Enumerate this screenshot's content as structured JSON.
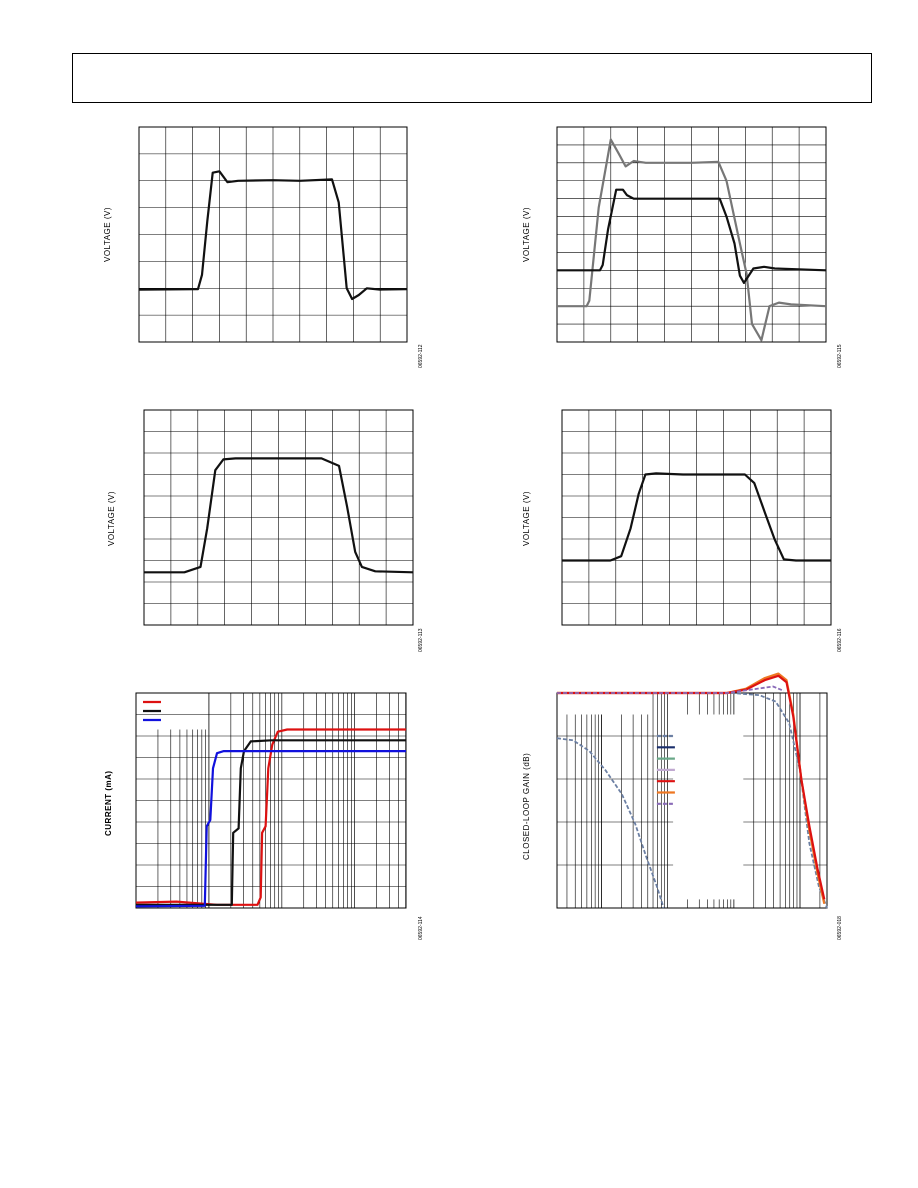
{
  "charts": [
    {
      "id": "c1",
      "ylabel": "VOLTAGE (V)",
      "fig_id": "06592-112"
    },
    {
      "id": "c2",
      "ylabel": "VOLTAGE (V)",
      "fig_id": "06592-115"
    },
    {
      "id": "c3",
      "ylabel": "VOLTAGE (V)",
      "fig_id": "06592-113"
    },
    {
      "id": "c4",
      "ylabel": "VOLTAGE (V)",
      "fig_id": "06592-116"
    },
    {
      "id": "c5",
      "ylabel": "CURRENT (mA)",
      "fig_id": "06592-114"
    },
    {
      "id": "c6",
      "ylabel": "CLOSED-LOOP GAIN (dB)",
      "fig_id": "06592-018"
    }
  ],
  "chart_data": [
    {
      "type": "line",
      "grid": true,
      "grid_divisions": [
        10,
        8
      ],
      "series": [
        {
          "color": "#111111",
          "points": [
            [
              0,
              1.95
            ],
            [
              2.2,
              1.97
            ],
            [
              2.35,
              2.5
            ],
            [
              2.55,
              4.5
            ],
            [
              2.75,
              6.3
            ],
            [
              3.0,
              6.35
            ],
            [
              3.3,
              5.95
            ],
            [
              3.7,
              6.0
            ],
            [
              5,
              6.02
            ],
            [
              6,
              6.0
            ],
            [
              7.2,
              6.05
            ],
            [
              7.45,
              5.2
            ],
            [
              7.75,
              2.0
            ],
            [
              7.95,
              1.6
            ],
            [
              8.2,
              1.75
            ],
            [
              8.5,
              2.0
            ],
            [
              9,
              1.95
            ],
            [
              10,
              1.97
            ]
          ]
        }
      ]
    },
    {
      "type": "line",
      "grid": true,
      "grid_divisions": [
        10,
        12
      ],
      "series": [
        {
          "color": "#777777",
          "points": [
            [
              0,
              2.0
            ],
            [
              1.1,
              2.0
            ],
            [
              1.2,
              2.3
            ],
            [
              1.55,
              7.5
            ],
            [
              2.0,
              11.3
            ],
            [
              2.3,
              10.5
            ],
            [
              2.55,
              9.8
            ],
            [
              2.85,
              10.1
            ],
            [
              3.3,
              10.0
            ],
            [
              5.0,
              10.0
            ],
            [
              6.0,
              10.05
            ],
            [
              6.3,
              9.0
            ],
            [
              6.8,
              5.5
            ],
            [
              7.05,
              3.8
            ],
            [
              7.25,
              1.0
            ],
            [
              7.6,
              0.1
            ],
            [
              7.9,
              2.0
            ],
            [
              8.25,
              2.2
            ],
            [
              8.7,
              2.1
            ],
            [
              10,
              2.0
            ]
          ]
        },
        {
          "color": "#111111",
          "points": [
            [
              0,
              4.0
            ],
            [
              1.6,
              4.0
            ],
            [
              1.7,
              4.3
            ],
            [
              1.9,
              6.3
            ],
            [
              2.2,
              8.5
            ],
            [
              2.45,
              8.5
            ],
            [
              2.6,
              8.2
            ],
            [
              2.85,
              8.0
            ],
            [
              3.2,
              8.0
            ],
            [
              4.5,
              8.0
            ],
            [
              5.3,
              8.0
            ],
            [
              6.05,
              8.0
            ],
            [
              6.3,
              7.0
            ],
            [
              6.6,
              5.5
            ],
            [
              6.8,
              3.7
            ],
            [
              6.95,
              3.3
            ],
            [
              7.3,
              4.1
            ],
            [
              7.7,
              4.2
            ],
            [
              8.1,
              4.1
            ],
            [
              10,
              4.0
            ]
          ]
        }
      ]
    },
    {
      "type": "line",
      "grid": true,
      "grid_divisions": [
        10,
        10
      ],
      "series": [
        {
          "color": "#111111",
          "points": [
            [
              0,
              2.45
            ],
            [
              1.5,
              2.45
            ],
            [
              2.1,
              2.7
            ],
            [
              2.35,
              4.5
            ],
            [
              2.65,
              7.2
            ],
            [
              2.95,
              7.7
            ],
            [
              3.4,
              7.75
            ],
            [
              6.6,
              7.75
            ],
            [
              7.25,
              7.4
            ],
            [
              7.55,
              5.5
            ],
            [
              7.85,
              3.4
            ],
            [
              8.1,
              2.7
            ],
            [
              8.6,
              2.5
            ],
            [
              10,
              2.45
            ]
          ]
        }
      ]
    },
    {
      "type": "line",
      "grid": true,
      "grid_divisions": [
        10,
        10
      ],
      "series": [
        {
          "color": "#111111",
          "points": [
            [
              0,
              3.0
            ],
            [
              1.8,
              3.0
            ],
            [
              2.2,
              3.2
            ],
            [
              2.55,
              4.5
            ],
            [
              2.85,
              6.1
            ],
            [
              3.1,
              7.0
            ],
            [
              3.5,
              7.05
            ],
            [
              4.5,
              7.0
            ],
            [
              6.8,
              7.0
            ],
            [
              7.15,
              6.6
            ],
            [
              7.55,
              5.2
            ],
            [
              7.9,
              4.0
            ],
            [
              8.25,
              3.05
            ],
            [
              8.7,
              3.0
            ],
            [
              10,
              3.0
            ]
          ]
        }
      ]
    },
    {
      "type": "line",
      "grid": true,
      "grid_divisions": [
        10,
        10
      ],
      "log_x": true,
      "legend": {
        "position": "top-left",
        "entries": [
          {
            "color": "#dd1111"
          },
          {
            "color": "#111111"
          },
          {
            "color": "#1111dd"
          }
        ]
      },
      "series": [
        {
          "color": "#dd1111",
          "points": [
            [
              0,
              0.25
            ],
            [
              1.5,
              0.3
            ],
            [
              3.0,
              0.15
            ],
            [
              4.5,
              0.15
            ],
            [
              4.62,
              0.5
            ],
            [
              4.67,
              3.5
            ],
            [
              4.8,
              3.8
            ],
            [
              4.9,
              6.5
            ],
            [
              5.05,
              7.6
            ],
            [
              5.25,
              8.2
            ],
            [
              5.6,
              8.3
            ],
            [
              10,
              8.3
            ]
          ]
        },
        {
          "color": "#111111",
          "points": [
            [
              0,
              0.15
            ],
            [
              3.55,
              0.15
            ],
            [
              3.6,
              3.5
            ],
            [
              3.8,
              3.7
            ],
            [
              3.88,
              6.5
            ],
            [
              4.0,
              7.3
            ],
            [
              4.25,
              7.75
            ],
            [
              5,
              7.8
            ],
            [
              10,
              7.8
            ]
          ]
        },
        {
          "color": "#1111dd",
          "points": [
            [
              0,
              0.08
            ],
            [
              2.55,
              0.1
            ],
            [
              2.62,
              3.8
            ],
            [
              2.75,
              4.1
            ],
            [
              2.85,
              6.5
            ],
            [
              3.0,
              7.2
            ],
            [
              3.25,
              7.3
            ],
            [
              10,
              7.3
            ]
          ]
        }
      ]
    },
    {
      "type": "line",
      "grid": true,
      "grid_divisions": [
        10,
        5
      ],
      "log_x": true,
      "legend": {
        "position": "center",
        "entries": [
          {
            "color": "#6b7fa3"
          },
          {
            "color": "#1a2e6b"
          },
          {
            "color": "#6aa888"
          },
          {
            "color": "#c0a8d0"
          },
          {
            "color": "#dd1111"
          },
          {
            "color": "#ee7722"
          },
          {
            "color": "#8a6bb8"
          }
        ]
      },
      "series": [
        {
          "color": "#6b7fa3",
          "dashed": true,
          "points": [
            [
              0,
              3.95
            ],
            [
              0.6,
              3.9
            ],
            [
              1.2,
              3.65
            ],
            [
              1.8,
              3.2
            ],
            [
              2.4,
              2.65
            ],
            [
              2.9,
              1.95
            ],
            [
              3.3,
              1.2
            ],
            [
              3.7,
              0.5
            ],
            [
              3.95,
              0.0
            ]
          ]
        },
        {
          "color": "#6b7fa3",
          "dashed": true,
          "points": [
            [
              0,
              5.0
            ],
            [
              6.5,
              5.0
            ],
            [
              7.5,
              4.95
            ],
            [
              8.1,
              4.8
            ],
            [
              8.6,
              4.3
            ],
            [
              9.0,
              3.2
            ],
            [
              9.35,
              1.5
            ],
            [
              9.7,
              0.5
            ],
            [
              10,
              0.0
            ]
          ]
        },
        {
          "color": "#ee7722",
          "points": [
            [
              0,
              5.0
            ],
            [
              6.3,
              5.0
            ],
            [
              7.0,
              5.1
            ],
            [
              7.7,
              5.35
            ],
            [
              8.2,
              5.45
            ],
            [
              8.5,
              5.3
            ],
            [
              8.75,
              4.5
            ],
            [
              9.05,
              3.0
            ],
            [
              9.35,
              1.8
            ],
            [
              9.65,
              0.8
            ],
            [
              9.9,
              0.1
            ]
          ]
        },
        {
          "color": "#dd1111",
          "points": [
            [
              0,
              5.0
            ],
            [
              6.3,
              5.0
            ],
            [
              7.0,
              5.08
            ],
            [
              7.7,
              5.3
            ],
            [
              8.2,
              5.4
            ],
            [
              8.5,
              5.25
            ],
            [
              8.75,
              4.45
            ],
            [
              9.05,
              3.0
            ],
            [
              9.35,
              1.9
            ],
            [
              9.65,
              0.9
            ],
            [
              9.9,
              0.2
            ]
          ]
        },
        {
          "color": "#8a6bb8",
          "dashed": true,
          "points": [
            [
              0,
              5.0
            ],
            [
              4.0,
              5.0
            ],
            [
              6.3,
              5.0
            ],
            [
              8.0,
              5.15
            ],
            [
              8.4,
              5.05
            ]
          ]
        }
      ]
    }
  ],
  "colors": {
    "grid": "#000000",
    "frame": "#000000"
  }
}
